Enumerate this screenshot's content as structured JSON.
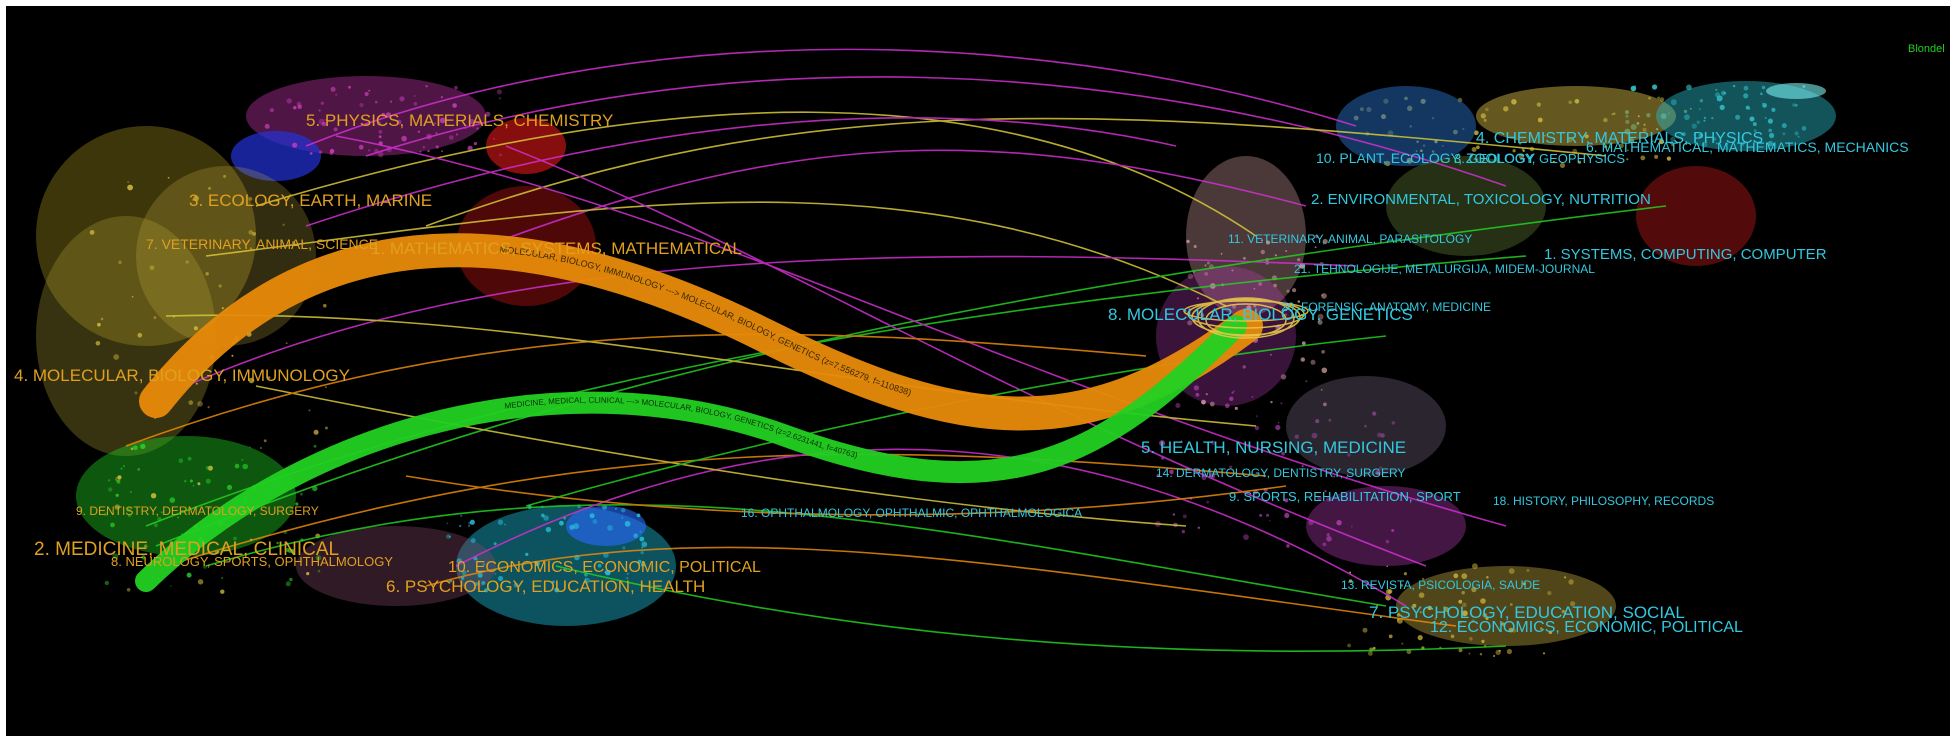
{
  "legend_label": "Blondel",
  "colors": {
    "background": "#000000",
    "citing_label": "#e0a020",
    "cited_label": "#33c8e0",
    "legend": "#22cc22",
    "main_orange": "#e88a0a",
    "main_green": "#22d022",
    "link_magenta": "#d030d0",
    "link_yellow": "#d8c83a"
  },
  "citing_clusters": [
    {
      "id": "c5",
      "label": "5. PHYSICS, MATERIALS, CHEMISTRY"
    },
    {
      "id": "c3",
      "label": "3. ECOLOGY, EARTH, MARINE"
    },
    {
      "id": "c7",
      "label": "7. VETERINARY, ANIMAL, SCIENCE"
    },
    {
      "id": "c1",
      "label": "1. MATHEMATICS, SYSTEMS, MATHEMATICAL"
    },
    {
      "id": "c4",
      "label": "4. MOLECULAR, BIOLOGY, IMMUNOLOGY"
    },
    {
      "id": "c9",
      "label": "9. DENTISTRY, DERMATOLOGY, SURGERY"
    },
    {
      "id": "c2",
      "label": "2. MEDICINE, MEDICAL, CLINICAL"
    },
    {
      "id": "c8",
      "label": "8. NEUROLOGY, SPORTS, OPHTHALMOLOGY"
    },
    {
      "id": "c10",
      "label": "10. ECONOMICS, ECONOMIC, POLITICAL"
    },
    {
      "id": "c6",
      "label": "6. PSYCHOLOGY, EDUCATION, HEALTH"
    }
  ],
  "cited_clusters": [
    {
      "id": "d4",
      "label": "4. CHEMISTRY, MATERIALS, PHYSICS"
    },
    {
      "id": "d6",
      "label": "6. MATHEMATICAL, MATHEMATICS, MECHANICS"
    },
    {
      "id": "d10",
      "label": "10. PLANT, ECOLOGY, ZOOLOGY"
    },
    {
      "id": "d3",
      "label": "3. GEOLOGY, GEOPHYSICS"
    },
    {
      "id": "d2",
      "label": "2. ENVIRONMENTAL, TOXICOLOGY, NUTRITION"
    },
    {
      "id": "d11",
      "label": "11. VETERINARY, ANIMAL, PARASITOLOGY"
    },
    {
      "id": "d1",
      "label": "1. SYSTEMS, COMPUTING, COMPUTER"
    },
    {
      "id": "d21",
      "label": "21. TEHNOLOGIJE, METALURGIJA, MIDEM-JOURNAL"
    },
    {
      "id": "d8",
      "label": "8. MOLECULAR, BIOLOGY, GENETICS"
    },
    {
      "id": "d20",
      "label": "20. FORENSIC, ANATOMY, MEDICINE"
    },
    {
      "id": "d5",
      "label": "5. HEALTH, NURSING, MEDICINE"
    },
    {
      "id": "d14",
      "label": "14. DERMATOLOGY, DENTISTRY, SURGERY"
    },
    {
      "id": "d9",
      "label": "9. SPORTS, REHABILITATION, SPORT"
    },
    {
      "id": "d18",
      "label": "18. HISTORY, PHILOSOPHY, RECORDS"
    },
    {
      "id": "d16",
      "label": "16. OPHTHALMOLOGY, OPHTHALMIC, OPHTHALMOLOGICA"
    },
    {
      "id": "d13",
      "label": "13. REVISTA, PSICOLOGIA, SAUDE"
    },
    {
      "id": "d7",
      "label": "7. PSYCHOLOGY, EDUCATION, SOCIAL"
    },
    {
      "id": "d12",
      "label": "12. ECONOMICS, ECONOMIC, POLITICAL"
    }
  ],
  "main_paths": [
    {
      "id": "orange-path",
      "from": "c4",
      "to": "d8",
      "label": "MOLECULAR, BIOLOGY, IMMUNOLOGY ---> MOLECULAR, BIOLOGY, GENETICS (z=7.556279, f=110838)"
    },
    {
      "id": "green-path",
      "from": "c2",
      "to": "d8",
      "label": "MEDICINE, MEDICAL, CLINICAL ---> MOLECULAR, BIOLOGY, GENETICS (z=2.6231441, f=40763)"
    }
  ]
}
